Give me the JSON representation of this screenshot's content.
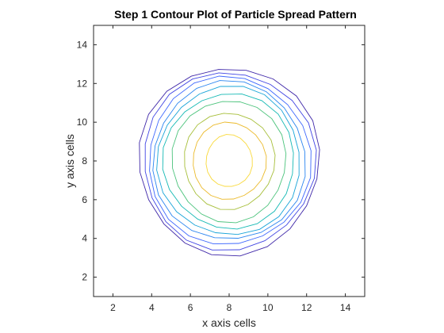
{
  "chart_data": {
    "type": "contour",
    "title": "Step 1 Contour Plot of Particle Spread Pattern",
    "xlabel": "x axis cells",
    "ylabel": "y axis cells",
    "xlim": [
      1,
      15
    ],
    "ylim": [
      1,
      15
    ],
    "x_ticks": [
      2,
      4,
      6,
      8,
      10,
      12,
      14
    ],
    "y_ticks": [
      2,
      4,
      6,
      8,
      10,
      12,
      14
    ],
    "grid": false,
    "center": [
      8,
      8
    ],
    "colormap": "parula",
    "levels": [
      {
        "level": 1,
        "radius_x": 4.67,
        "radius_y": 4.85,
        "color": "#3e26a8"
      },
      {
        "level": 2,
        "radius_x": 4.45,
        "radius_y": 4.6,
        "color": "#4145e3"
      },
      {
        "level": 3,
        "radius_x": 4.2,
        "radius_y": 4.35,
        "color": "#3c66fd"
      },
      {
        "level": 4,
        "radius_x": 3.95,
        "radius_y": 4.1,
        "color": "#2b85f0"
      },
      {
        "level": 5,
        "radius_x": 3.7,
        "radius_y": 3.85,
        "color": "#19a4d8"
      },
      {
        "level": 6,
        "radius_x": 3.4,
        "radius_y": 3.5,
        "color": "#15b9b4"
      },
      {
        "level": 7,
        "radius_x": 2.95,
        "radius_y": 3.15,
        "color": "#4cc37c"
      },
      {
        "level": 8,
        "radius_x": 2.35,
        "radius_y": 2.5,
        "color": "#a6be38"
      },
      {
        "level": 9,
        "radius_x": 1.9,
        "radius_y": 2.0,
        "color": "#ebba2b"
      },
      {
        "level": 10,
        "radius_x": 1.2,
        "radius_y": 1.35,
        "color": "#f9d93a"
      }
    ]
  }
}
